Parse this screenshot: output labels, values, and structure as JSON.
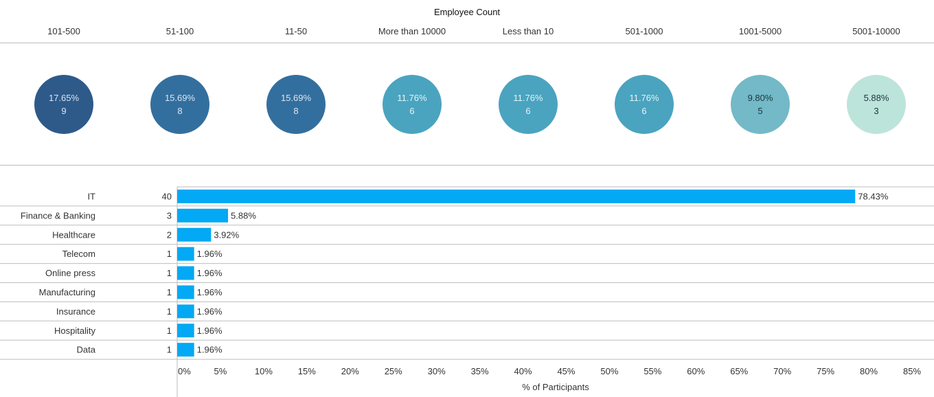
{
  "chart_data": [
    {
      "type": "bubble",
      "title": "Employee Count",
      "categories": [
        "101-500",
        "51-100",
        "11-50",
        "More than 10000",
        "Less than 10",
        "501-1000",
        "1001-5000",
        "5001-10000"
      ],
      "percent_labels": [
        "17.65%",
        "15.69%",
        "15.69%",
        "11.76%",
        "11.76%",
        "11.76%",
        "9.80%",
        "5.88%"
      ],
      "percents": [
        17.65,
        15.69,
        15.69,
        11.76,
        11.76,
        11.76,
        9.8,
        5.88
      ],
      "counts": [
        9,
        8,
        8,
        6,
        6,
        6,
        5,
        3
      ],
      "colors": [
        "#2e5a8a",
        "#336f9e",
        "#336f9e",
        "#4aa4bf",
        "#4aa4bf",
        "#4aa4bf",
        "#73b9c7",
        "#bde4da"
      ],
      "text_colors": [
        "#dbe6f2",
        "#dbe6f2",
        "#dbe6f2",
        "#e6f4f8",
        "#e6f4f8",
        "#e6f4f8",
        "#1c3440",
        "#1c3440"
      ]
    },
    {
      "type": "bar",
      "orientation": "horizontal",
      "categories": [
        "IT",
        "Finance & Banking",
        "Healthcare",
        "Telecom",
        "Online press",
        "Manufacturing",
        "Insurance",
        "Hospitality",
        "Data"
      ],
      "counts": [
        40,
        3,
        2,
        1,
        1,
        1,
        1,
        1,
        1
      ],
      "values": [
        78.43,
        5.88,
        3.92,
        1.96,
        1.96,
        1.96,
        1.96,
        1.96,
        1.96
      ],
      "value_labels": [
        "78.43%",
        "5.88%",
        "3.92%",
        "1.96%",
        "1.96%",
        "1.96%",
        "1.96%",
        "1.96%",
        "1.96%"
      ],
      "xlabel": "% of Participants",
      "xlim": [
        0,
        85
      ],
      "xticks": [
        "0%",
        "5%",
        "10%",
        "15%",
        "20%",
        "25%",
        "30%",
        "35%",
        "40%",
        "45%",
        "50%",
        "55%",
        "60%",
        "65%",
        "70%",
        "75%",
        "80%",
        "85%"
      ],
      "bar_color": "#03a9f4"
    }
  ]
}
